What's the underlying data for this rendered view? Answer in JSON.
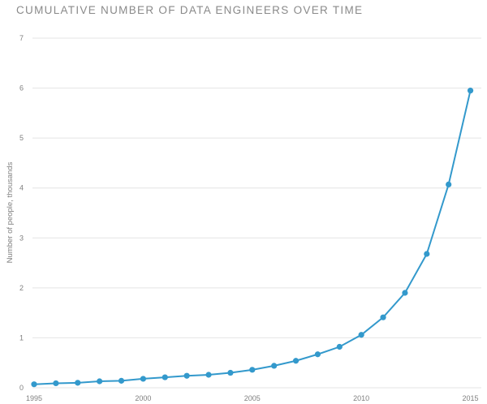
{
  "chart_data": {
    "type": "line",
    "title": "CUMULATIVE NUMBER OF DATA ENGINEERS OVER TIME",
    "xlabel": "",
    "ylabel": "Number of people, thousands",
    "xlim": [
      1995,
      2015.5
    ],
    "ylim": [
      0,
      7
    ],
    "x_ticks": [
      1995,
      2000,
      2005,
      2010,
      2015
    ],
    "y_ticks": [
      0,
      1,
      2,
      3,
      4,
      5,
      6,
      7
    ],
    "grid": "horizontal",
    "series": [
      {
        "color": "#3399cc",
        "x": [
          1995,
          1996,
          1997,
          1998,
          1999,
          2000,
          2001,
          2002,
          2003,
          2004,
          2005,
          2006,
          2007,
          2008,
          2009,
          2010,
          2011,
          2012,
          2013,
          2014,
          2015
        ],
        "values": [
          0.07,
          0.09,
          0.1,
          0.13,
          0.14,
          0.18,
          0.21,
          0.24,
          0.26,
          0.3,
          0.36,
          0.44,
          0.54,
          0.67,
          0.82,
          1.06,
          1.41,
          1.9,
          2.68,
          4.07,
          5.95
        ]
      }
    ]
  }
}
